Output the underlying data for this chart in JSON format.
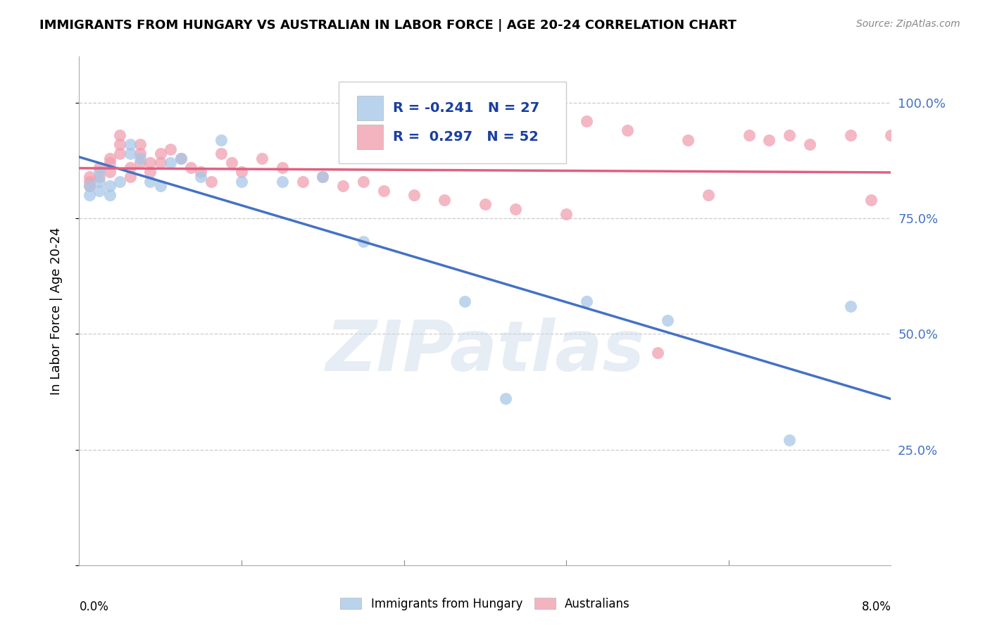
{
  "title": "IMMIGRANTS FROM HUNGARY VS AUSTRALIAN IN LABOR FORCE | AGE 20-24 CORRELATION CHART",
  "source": "Source: ZipAtlas.com",
  "ylabel": "In Labor Force | Age 20-24",
  "xlim": [
    0.0,
    0.08
  ],
  "ylim": [
    0.0,
    1.1
  ],
  "legend_blue_label": "Immigrants from Hungary",
  "legend_pink_label": "Australians",
  "blue_R": -0.241,
  "blue_N": 27,
  "pink_R": 0.297,
  "pink_N": 52,
  "blue_color": "#a8c8e8",
  "pink_color": "#f0a0b0",
  "blue_line_color": "#4472c4",
  "pink_line_color": "#e06080",
  "blue_points_x": [
    0.001,
    0.001,
    0.002,
    0.002,
    0.002,
    0.003,
    0.003,
    0.004,
    0.005,
    0.005,
    0.006,
    0.007,
    0.008,
    0.009,
    0.01,
    0.012,
    0.014,
    0.016,
    0.02,
    0.024,
    0.028,
    0.038,
    0.042,
    0.05,
    0.058,
    0.07,
    0.076
  ],
  "blue_points_y": [
    0.82,
    0.8,
    0.85,
    0.83,
    0.81,
    0.82,
    0.8,
    0.83,
    0.91,
    0.89,
    0.88,
    0.83,
    0.82,
    0.87,
    0.88,
    0.84,
    0.92,
    0.83,
    0.83,
    0.84,
    0.7,
    0.57,
    0.36,
    0.57,
    0.53,
    0.27,
    0.56
  ],
  "pink_points_x": [
    0.001,
    0.001,
    0.001,
    0.002,
    0.002,
    0.003,
    0.003,
    0.003,
    0.004,
    0.004,
    0.004,
    0.005,
    0.005,
    0.006,
    0.006,
    0.006,
    0.007,
    0.007,
    0.008,
    0.008,
    0.009,
    0.01,
    0.011,
    0.012,
    0.013,
    0.014,
    0.015,
    0.016,
    0.018,
    0.02,
    0.022,
    0.024,
    0.026,
    0.028,
    0.03,
    0.033,
    0.036,
    0.04,
    0.043,
    0.048,
    0.05,
    0.054,
    0.057,
    0.06,
    0.062,
    0.066,
    0.068,
    0.07,
    0.072,
    0.076,
    0.078,
    0.08
  ],
  "pink_points_y": [
    0.84,
    0.83,
    0.82,
    0.86,
    0.84,
    0.88,
    0.87,
    0.85,
    0.93,
    0.91,
    0.89,
    0.86,
    0.84,
    0.91,
    0.89,
    0.87,
    0.87,
    0.85,
    0.89,
    0.87,
    0.9,
    0.88,
    0.86,
    0.85,
    0.83,
    0.89,
    0.87,
    0.85,
    0.88,
    0.86,
    0.83,
    0.84,
    0.82,
    0.83,
    0.81,
    0.8,
    0.79,
    0.78,
    0.77,
    0.76,
    0.96,
    0.94,
    0.46,
    0.92,
    0.8,
    0.93,
    0.92,
    0.93,
    0.91,
    0.93,
    0.79,
    0.93
  ],
  "watermark": "ZIPatlas",
  "background_color": "#ffffff",
  "grid_color": "#cccccc",
  "ytick_color": "#4472c4",
  "ytick_vals": [
    0.25,
    0.5,
    0.75,
    1.0
  ],
  "ytick_labels": [
    "25.0%",
    "50.0%",
    "75.0%",
    "100.0%"
  ],
  "right_ytick_vals": [
    0.25,
    0.5,
    0.75,
    1.0
  ],
  "right_ytick_labels": [
    "25.0%",
    "50.0%",
    "75.0%",
    "100.0%"
  ]
}
